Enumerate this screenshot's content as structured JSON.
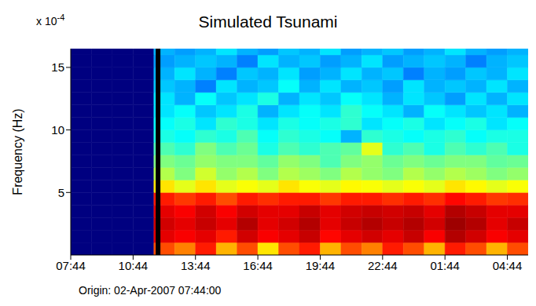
{
  "chart_data": {
    "type": "heatmap",
    "title": "Simulated Tsunami",
    "y_label": "Frequency (Hz)",
    "y_multiplier": "x 10",
    "y_multiplier_exponent": "-4",
    "note": "Origin: 02-Apr-2007 07:44:00",
    "xlim": [
      0,
      22
    ],
    "xticks": [
      {
        "value": 0,
        "label": "07:44"
      },
      {
        "value": 3,
        "label": "10:44"
      },
      {
        "value": 6,
        "label": "13:44"
      },
      {
        "value": 9,
        "label": "16:44"
      },
      {
        "value": 12,
        "label": "19:44"
      },
      {
        "value": 15,
        "label": "22:44"
      },
      {
        "value": 18,
        "label": "01:44"
      },
      {
        "value": 21,
        "label": "04:44"
      }
    ],
    "ylim": [
      0,
      16.5
    ],
    "yticks": [
      5,
      10,
      15
    ],
    "event_line_x": 4.2,
    "x_edges": [
      0,
      1,
      2,
      3,
      4,
      5,
      6,
      7,
      8,
      9,
      10,
      11,
      12,
      13,
      14,
      15,
      16,
      17,
      18,
      19,
      20,
      21,
      22
    ],
    "y_edges": [
      0,
      1,
      2,
      3,
      4,
      5,
      6,
      7,
      8,
      9,
      10,
      11,
      12,
      13,
      14,
      15,
      16,
      17
    ],
    "zlim": [
      0,
      1
    ],
    "z": [
      [
        0,
        0,
        0,
        0,
        0.8,
        0.75,
        0.85,
        0.7,
        0.8,
        0.65,
        0.8,
        0.85,
        0.7,
        0.8,
        0.75,
        0.85,
        0.8,
        0.7,
        0.85,
        0.8,
        0.7,
        0.8
      ],
      [
        0,
        0,
        0,
        0,
        0.9,
        0.88,
        0.9,
        0.85,
        0.92,
        0.88,
        0.9,
        0.93,
        0.87,
        0.9,
        0.92,
        0.9,
        0.93,
        0.88,
        0.95,
        0.92,
        0.88,
        0.9
      ],
      [
        0,
        0,
        0,
        0,
        0.92,
        0.9,
        0.93,
        0.9,
        0.95,
        0.9,
        0.92,
        0.95,
        0.9,
        0.93,
        0.95,
        0.93,
        0.95,
        0.92,
        0.97,
        0.95,
        0.9,
        0.93
      ],
      [
        0,
        0,
        0,
        0,
        0.9,
        0.88,
        0.92,
        0.88,
        0.92,
        0.9,
        0.9,
        0.93,
        0.9,
        0.92,
        0.93,
        0.92,
        0.93,
        0.9,
        0.95,
        0.93,
        0.9,
        0.9
      ],
      [
        0,
        0,
        0,
        0,
        0.85,
        0.82,
        0.85,
        0.8,
        0.85,
        0.83,
        0.85,
        0.85,
        0.82,
        0.85,
        0.85,
        0.83,
        0.85,
        0.83,
        0.87,
        0.85,
        0.82,
        0.83
      ],
      [
        0,
        0,
        0,
        0,
        0.65,
        0.6,
        0.65,
        0.6,
        0.62,
        0.6,
        0.65,
        0.62,
        0.6,
        0.63,
        0.62,
        0.6,
        0.62,
        0.6,
        0.65,
        0.63,
        0.6,
        0.62
      ],
      [
        0,
        0,
        0,
        0,
        0.55,
        0.5,
        0.58,
        0.52,
        0.55,
        0.5,
        0.55,
        0.53,
        0.5,
        0.55,
        0.52,
        0.5,
        0.55,
        0.52,
        0.55,
        0.53,
        0.5,
        0.52
      ],
      [
        0,
        0,
        0,
        0,
        0.5,
        0.48,
        0.52,
        0.5,
        0.5,
        0.47,
        0.52,
        0.5,
        0.45,
        0.5,
        0.52,
        0.48,
        0.5,
        0.48,
        0.5,
        0.5,
        0.47,
        0.48
      ],
      [
        0,
        0,
        0,
        0,
        0.45,
        0.42,
        0.5,
        0.45,
        0.48,
        0.4,
        0.45,
        0.42,
        0.45,
        0.47,
        0.6,
        0.42,
        0.45,
        0.4,
        0.45,
        0.42,
        0.45,
        0.4
      ],
      [
        0,
        0,
        0,
        0,
        0.4,
        0.38,
        0.42,
        0.4,
        0.45,
        0.38,
        0.42,
        0.4,
        0.38,
        0.3,
        0.42,
        0.4,
        0.38,
        0.4,
        0.42,
        0.38,
        0.4,
        0.4
      ],
      [
        0,
        0,
        0,
        0,
        0.38,
        0.4,
        0.35,
        0.42,
        0.4,
        0.35,
        0.4,
        0.38,
        0.4,
        0.42,
        0.35,
        0.38,
        0.4,
        0.35,
        0.38,
        0.4,
        0.35,
        0.38
      ],
      [
        0,
        0,
        0,
        0,
        0.35,
        0.38,
        0.32,
        0.35,
        0.4,
        0.3,
        0.35,
        0.38,
        0.35,
        0.42,
        0.38,
        0.35,
        0.3,
        0.38,
        0.35,
        0.32,
        0.35,
        0.3
      ],
      [
        0,
        0,
        0,
        0,
        0.35,
        0.3,
        0.38,
        0.32,
        0.35,
        0.4,
        0.3,
        0.35,
        0.32,
        0.38,
        0.35,
        0.3,
        0.35,
        0.32,
        0.28,
        0.35,
        0.3,
        0.35
      ],
      [
        0,
        0,
        0,
        0,
        0.32,
        0.3,
        0.25,
        0.35,
        0.3,
        0.32,
        0.38,
        0.3,
        0.35,
        0.3,
        0.32,
        0.28,
        0.35,
        0.3,
        0.32,
        0.3,
        0.35,
        0.3
      ],
      [
        0,
        0,
        0,
        0,
        0.3,
        0.35,
        0.3,
        0.25,
        0.32,
        0.3,
        0.35,
        0.28,
        0.3,
        0.35,
        0.3,
        0.32,
        0.25,
        0.3,
        0.28,
        0.32,
        0.3,
        0.35
      ],
      [
        0,
        0,
        0,
        0,
        0.28,
        0.3,
        0.32,
        0.3,
        0.25,
        0.35,
        0.3,
        0.32,
        0.28,
        0.3,
        0.35,
        0.28,
        0.3,
        0.32,
        0.3,
        0.25,
        0.3,
        0.32
      ],
      [
        0,
        0,
        0,
        0,
        0.3,
        0.28,
        0.3,
        0.35,
        0.3,
        0.28,
        0.32,
        0.3,
        0.35,
        0.28,
        0.3,
        0.32,
        0.28,
        0.3,
        0.35,
        0.3,
        0.28,
        0.3
      ]
    ]
  }
}
